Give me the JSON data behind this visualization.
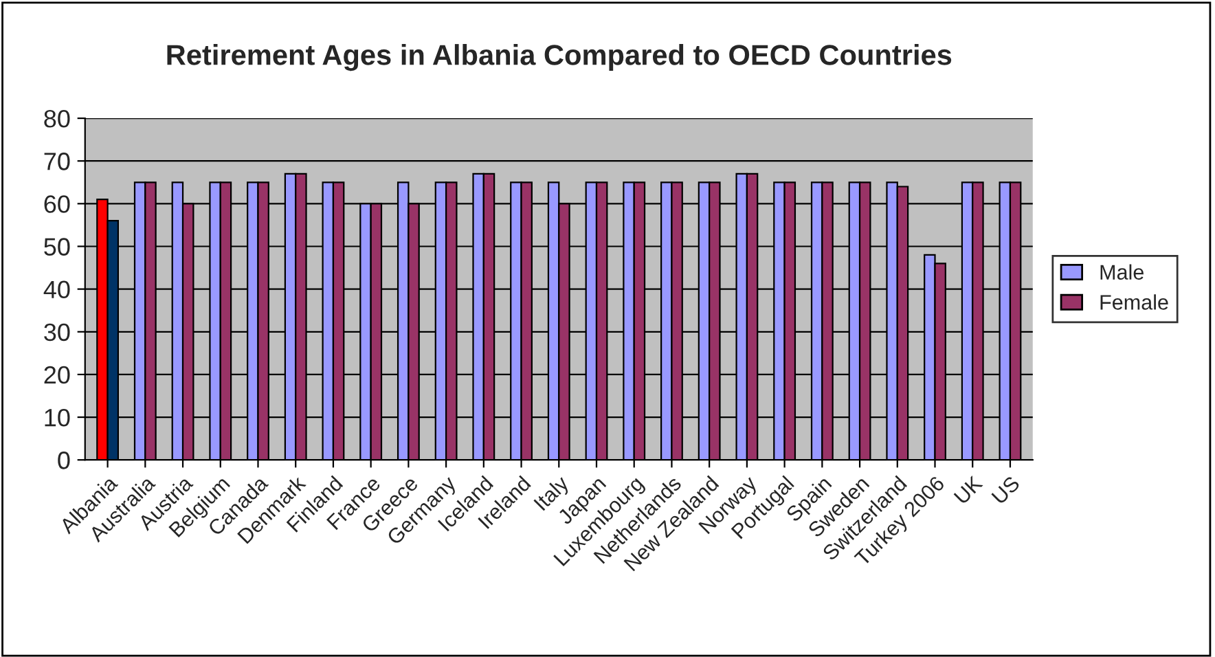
{
  "chart_data": {
    "type": "bar",
    "title": "Retirement Ages in Albania Compared to OECD Countries",
    "categories": [
      "Albania",
      "Australia",
      "Austria",
      "Belgium",
      "Canada",
      "Denmark",
      "Finland",
      "France",
      "Greece",
      "Germany",
      "Iceland",
      "Ireland",
      "Italy",
      "Japan",
      "Luxembourg",
      "Netherlands",
      "New Zealand",
      "Norway",
      "Portugal",
      "Spain",
      "Sweden",
      "Switzerland",
      "Turkey 2006",
      "UK",
      "US"
    ],
    "series": [
      {
        "name": "Male",
        "color": "#9999ff",
        "colors": [
          "#ff0000",
          "#9999ff",
          "#9999ff",
          "#9999ff",
          "#9999ff",
          "#9999ff",
          "#9999ff",
          "#9999ff",
          "#9999ff",
          "#9999ff",
          "#9999ff",
          "#9999ff",
          "#9999ff",
          "#9999ff",
          "#9999ff",
          "#9999ff",
          "#9999ff",
          "#9999ff",
          "#9999ff",
          "#9999ff",
          "#9999ff",
          "#9999ff",
          "#9999ff",
          "#9999ff",
          "#9999ff"
        ],
        "values": [
          61,
          65,
          65,
          65,
          65,
          67,
          65,
          60,
          65,
          65,
          67,
          65,
          65,
          65,
          65,
          65,
          65,
          67,
          65,
          65,
          65,
          65,
          48,
          65,
          65
        ]
      },
      {
        "name": "Female",
        "color": "#993366",
        "colors": [
          "#003366",
          "#993366",
          "#993366",
          "#993366",
          "#993366",
          "#993366",
          "#993366",
          "#993366",
          "#993366",
          "#993366",
          "#993366",
          "#993366",
          "#993366",
          "#993366",
          "#993366",
          "#993366",
          "#993366",
          "#993366",
          "#993366",
          "#993366",
          "#993366",
          "#993366",
          "#993366",
          "#993366",
          "#993366"
        ],
        "values": [
          56,
          65,
          60,
          65,
          65,
          67,
          65,
          60,
          60,
          65,
          67,
          65,
          60,
          65,
          65,
          65,
          65,
          67,
          65,
          65,
          65,
          64,
          46,
          65,
          65
        ]
      }
    ],
    "ylim": [
      0,
      80
    ],
    "yticks": [
      0,
      10,
      20,
      30,
      40,
      50,
      60,
      70,
      80
    ],
    "grid": "y",
    "legend": "right"
  }
}
